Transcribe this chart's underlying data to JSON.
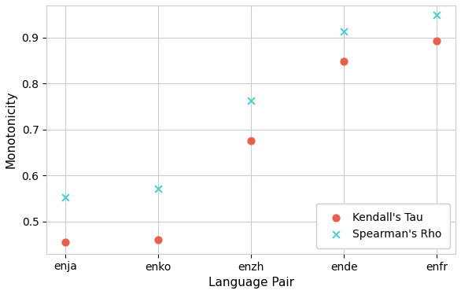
{
  "categories": [
    "enja",
    "enko",
    "enzh",
    "ende",
    "enfr"
  ],
  "kendalls_tau": [
    0.455,
    0.46,
    0.675,
    0.848,
    0.893
  ],
  "spearmans_rho": [
    0.553,
    0.572,
    0.763,
    0.913,
    0.95
  ],
  "tau_color": "#E8604C",
  "rho_color": "#4DCFCF",
  "tau_label": "Kendall's Tau",
  "rho_label": "Spearman's Rho",
  "xlabel": "Language Pair",
  "ylabel": "Monotonicity",
  "ylim": [
    0.43,
    0.97
  ],
  "yticks": [
    0.5,
    0.6,
    0.7,
    0.8,
    0.9
  ],
  "grid_color": "#cccccc",
  "bg_color": "#ffffff",
  "marker_size": 40,
  "tau_marker": "o",
  "rho_marker": "x",
  "legend_loc": "lower right",
  "label_fontsize": 11,
  "tick_fontsize": 10,
  "legend_fontsize": 10
}
